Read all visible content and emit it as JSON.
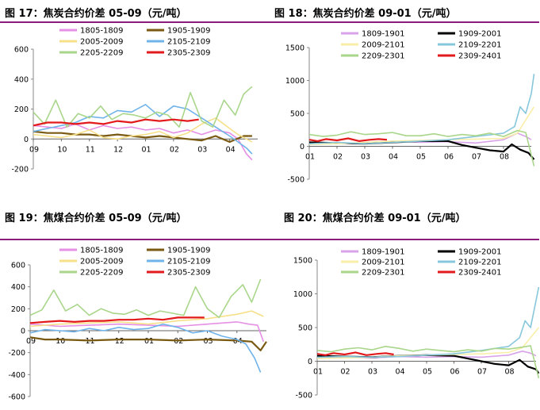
{
  "colors": {
    "rule": "#8a1c7c",
    "s1805": "#e58fe5",
    "s1905": "#7a5a12",
    "s2005": "#f7e08a",
    "s2105": "#6fb3ea",
    "s2205": "#a9d68a",
    "s2305": "#e31a1c",
    "s1809": "#d9a3ea",
    "s1909": "#000000",
    "s2009": "#f9eea8",
    "s2109": "#87c7dc",
    "s2209": "#a9d68a",
    "s2309": "#e31a1c"
  },
  "chart_data": [
    {
      "id": "fig17",
      "type": "line",
      "title": "图 17：焦炭合约价差 05-09（元/吨）",
      "ylim": [
        -200,
        600
      ],
      "yticks": [
        -200,
        0,
        200,
        400,
        600
      ],
      "xticks": [
        "09",
        "10",
        "11",
        "12",
        "01",
        "02",
        "03",
        "04"
      ],
      "xlim": [
        0,
        8
      ],
      "legend": [
        "1805-1809",
        "1905-1909",
        "2005-2009",
        "2105-2109",
        "2205-2209",
        "2305-2309"
      ],
      "series": [
        {
          "name": "1805-1809",
          "color": "s1805",
          "x": [
            0,
            0.5,
            1,
            1.5,
            2,
            2.5,
            3,
            3.5,
            4,
            4.5,
            5,
            5.5,
            6,
            6.5,
            7,
            7.3,
            7.6,
            7.8
          ],
          "values": [
            90,
            80,
            70,
            100,
            60,
            90,
            70,
            80,
            60,
            70,
            40,
            60,
            30,
            60,
            40,
            0,
            -100,
            -140
          ]
        },
        {
          "name": "1905-1909",
          "color": "s1905",
          "x": [
            0,
            0.5,
            1,
            1.5,
            2,
            2.5,
            3,
            3.5,
            4,
            4.5,
            5,
            5.5,
            6,
            6.5,
            7,
            7.5,
            7.8
          ],
          "values": [
            50,
            40,
            40,
            30,
            30,
            20,
            30,
            20,
            10,
            20,
            10,
            0,
            -10,
            20,
            -20,
            20,
            20
          ]
        },
        {
          "name": "2005-2009",
          "color": "s2005",
          "x": [
            0,
            0.5,
            1,
            1.5,
            2,
            2.5,
            3,
            3.5,
            4,
            4.5,
            5,
            5.5,
            6,
            6.5,
            7,
            7.3,
            7.6,
            7.8
          ],
          "values": [
            30,
            20,
            10,
            30,
            60,
            10,
            0,
            20,
            30,
            50,
            10,
            40,
            100,
            140,
            70,
            30,
            0,
            -20
          ]
        },
        {
          "name": "2105-2109",
          "color": "s2105",
          "x": [
            0,
            0.5,
            1,
            1.5,
            2,
            2.5,
            3,
            3.5,
            4,
            4.5,
            5,
            5.5,
            6,
            6.5,
            7,
            7.3,
            7.6,
            7.8
          ],
          "values": [
            50,
            70,
            90,
            110,
            150,
            140,
            190,
            180,
            230,
            150,
            220,
            200,
            140,
            80,
            20,
            -20,
            -60,
            -100
          ]
        },
        {
          "name": "2205-2209",
          "color": "s2205",
          "x": [
            0,
            0.4,
            0.8,
            1.2,
            1.6,
            2,
            2.4,
            2.8,
            3.2,
            3.6,
            4,
            4.4,
            4.8,
            5.2,
            5.6,
            6,
            6.4,
            6.8,
            7.2,
            7.5,
            7.8
          ],
          "values": [
            180,
            100,
            260,
            80,
            170,
            140,
            220,
            130,
            170,
            160,
            140,
            180,
            160,
            80,
            310,
            120,
            80,
            260,
            160,
            300,
            350
          ]
        },
        {
          "name": "2305-2309",
          "color": "s2305",
          "x": [
            0,
            0.5,
            1,
            1.5,
            2,
            2.5,
            3,
            3.5,
            4,
            4.5,
            5,
            5.5,
            5.9
          ],
          "values": [
            90,
            110,
            110,
            100,
            110,
            100,
            120,
            110,
            130,
            120,
            130,
            120,
            130
          ]
        }
      ]
    },
    {
      "id": "fig18",
      "type": "line",
      "title": "图 18：焦炭合约价差 09-01（元/吨）",
      "ylim": [
        -500,
        1500
      ],
      "yticks": [
        -500,
        0,
        500,
        1000,
        1500
      ],
      "xticks": [
        "01",
        "02",
        "03",
        "04",
        "05",
        "06",
        "07",
        "08"
      ],
      "xlim": [
        0,
        8
      ],
      "legend": [
        "1809-1901",
        "1909-2001",
        "2009-2101",
        "2109-2201",
        "2209-2301",
        "2309-2401"
      ],
      "series": [
        {
          "name": "1809-1901",
          "color": "s1809",
          "x": [
            0,
            1,
            2,
            3,
            4,
            5,
            6,
            7,
            7.5,
            7.8,
            8
          ],
          "values": [
            50,
            60,
            40,
            80,
            60,
            70,
            50,
            100,
            200,
            150,
            100
          ]
        },
        {
          "name": "1909-2001",
          "color": "s1909",
          "x": [
            0,
            1,
            2,
            3,
            4,
            5,
            5.5,
            6,
            6.5,
            7,
            7.3,
            7.6,
            7.9,
            8.1
          ],
          "values": [
            60,
            50,
            40,
            60,
            80,
            80,
            20,
            -20,
            -60,
            -80,
            30,
            -50,
            -100,
            -200
          ]
        },
        {
          "name": "2009-2101",
          "color": "s2009",
          "x": [
            0,
            1,
            2,
            3,
            4,
            5,
            6,
            7,
            7.5,
            7.8,
            8.1
          ],
          "values": [
            30,
            40,
            60,
            80,
            90,
            100,
            110,
            120,
            200,
            400,
            600
          ]
        },
        {
          "name": "2109-2201",
          "color": "s2109",
          "x": [
            0,
            1,
            2,
            3,
            4,
            5,
            6,
            7,
            7.4,
            7.6,
            7.8,
            8.0,
            8.1
          ],
          "values": [
            40,
            60,
            40,
            60,
            80,
            100,
            150,
            200,
            300,
            600,
            500,
            800,
            1100
          ]
        },
        {
          "name": "2209-2301",
          "color": "s2209",
          "x": [
            0,
            0.5,
            1,
            1.5,
            2,
            2.5,
            3,
            3.5,
            4,
            4.5,
            5,
            5.5,
            6,
            6.5,
            7,
            7.5,
            7.8,
            8.1
          ],
          "values": [
            180,
            150,
            170,
            220,
            180,
            190,
            210,
            160,
            160,
            190,
            150,
            180,
            160,
            200,
            150,
            240,
            210,
            -300
          ]
        },
        {
          "name": "2309-2401",
          "color": "s2309",
          "x": [
            0,
            0.3,
            0.6,
            1,
            1.4,
            1.8,
            2.2,
            2.5,
            2.8
          ],
          "values": [
            100,
            80,
            110,
            90,
            120,
            80,
            100,
            110,
            100
          ]
        }
      ]
    },
    {
      "id": "fig19",
      "type": "line",
      "title": "图 19：焦煤合约价差 05-09（元/吨）",
      "ylim": [
        -600,
        600
      ],
      "yticks": [
        -600,
        -400,
        -200,
        0,
        200,
        400,
        600
      ],
      "xticks": [
        "09",
        "10",
        "11",
        "12",
        "01",
        "02",
        "03",
        "04"
      ],
      "xlim": [
        0,
        8
      ],
      "legend": [
        "1805-1809",
        "1905-1909",
        "2005-2009",
        "2105-2109",
        "2205-2209",
        "2305-2309"
      ],
      "series": [
        {
          "name": "1805-1809",
          "color": "s1805",
          "x": [
            0,
            1,
            2,
            3,
            4,
            5,
            6,
            7,
            7.4,
            7.7,
            7.9
          ],
          "values": [
            60,
            40,
            50,
            60,
            50,
            40,
            60,
            80,
            60,
            50,
            -100
          ]
        },
        {
          "name": "1905-1909",
          "color": "s1905",
          "x": [
            0,
            0.5,
            1,
            2,
            3,
            4,
            5,
            6,
            7,
            7.5,
            7.8,
            8
          ],
          "values": [
            -60,
            -80,
            -80,
            -90,
            -80,
            -80,
            -90,
            -80,
            -90,
            -100,
            -180,
            -100
          ]
        },
        {
          "name": "2005-2009",
          "color": "s2005",
          "x": [
            0,
            1,
            2,
            3,
            4,
            5,
            6,
            7,
            7.5,
            7.9
          ],
          "values": [
            40,
            60,
            70,
            80,
            60,
            90,
            110,
            150,
            180,
            130
          ]
        },
        {
          "name": "2105-2109",
          "color": "s2105",
          "x": [
            0,
            0.5,
            1,
            1.5,
            2,
            2.5,
            3,
            3.5,
            4,
            4.5,
            5,
            5.5,
            6,
            6.5,
            7,
            7.3,
            7.6,
            7.8
          ],
          "values": [
            -20,
            10,
            0,
            -10,
            20,
            0,
            30,
            10,
            20,
            60,
            30,
            -20,
            0,
            -50,
            -80,
            -120,
            -250,
            -380
          ]
        },
        {
          "name": "2205-2209",
          "color": "s2205",
          "x": [
            0,
            0.4,
            0.8,
            1.2,
            1.6,
            2,
            2.4,
            2.8,
            3.2,
            3.6,
            4,
            4.4,
            4.8,
            5.2,
            5.6,
            6,
            6.4,
            6.8,
            7.2,
            7.5,
            7.8
          ],
          "values": [
            140,
            190,
            370,
            180,
            240,
            140,
            200,
            160,
            150,
            190,
            140,
            180,
            160,
            140,
            400,
            200,
            120,
            310,
            420,
            260,
            470
          ]
        },
        {
          "name": "2305-2309",
          "color": "s2305",
          "x": [
            0,
            0.5,
            1,
            1.5,
            2,
            2.5,
            3,
            3.5,
            4,
            4.5,
            5,
            5.5,
            5.9
          ],
          "values": [
            70,
            80,
            90,
            80,
            90,
            90,
            100,
            100,
            110,
            100,
            120,
            120,
            120
          ]
        }
      ]
    },
    {
      "id": "fig20",
      "type": "line",
      "title": "图 20：焦煤合约价差 09-01（元/吨）",
      "ylim": [
        -500,
        1500
      ],
      "yticks": [
        -500,
        0,
        500,
        1000,
        1500
      ],
      "xticks": [
        "01",
        "02",
        "03",
        "04",
        "05",
        "06",
        "07",
        "08"
      ],
      "xlim": [
        0,
        8
      ],
      "legend": [
        "1809-1901",
        "1909-2001",
        "2009-2101",
        "2109-2201",
        "2209-2301",
        "2309-2401"
      ],
      "series": [
        {
          "name": "1809-1901",
          "color": "s1809",
          "x": [
            0,
            1,
            2,
            3,
            4,
            5,
            6,
            7,
            7.5,
            7.8,
            8
          ],
          "values": [
            50,
            60,
            50,
            70,
            60,
            70,
            60,
            90,
            150,
            120,
            80
          ]
        },
        {
          "name": "1909-2001",
          "color": "s1909",
          "x": [
            0,
            1,
            2,
            3,
            4,
            5,
            5.5,
            6,
            6.5,
            7,
            7.4,
            7.7,
            8.0,
            8.1
          ],
          "values": [
            80,
            70,
            60,
            80,
            90,
            80,
            40,
            0,
            -40,
            -60,
            20,
            -80,
            -120,
            -180
          ]
        },
        {
          "name": "2009-2101",
          "color": "s2009",
          "x": [
            0,
            1,
            2,
            3,
            4,
            5,
            6,
            7,
            7.5,
            7.8,
            8.1
          ],
          "values": [
            40,
            50,
            60,
            80,
            90,
            100,
            110,
            130,
            200,
            350,
            500
          ]
        },
        {
          "name": "2109-2201",
          "color": "s2109",
          "x": [
            0,
            1,
            2,
            3,
            4,
            5,
            6,
            7,
            7.4,
            7.6,
            7.8,
            8.0,
            8.1
          ],
          "values": [
            60,
            70,
            60,
            70,
            90,
            110,
            160,
            220,
            350,
            600,
            500,
            900,
            1100
          ]
        },
        {
          "name": "2209-2301",
          "color": "s2209",
          "x": [
            0,
            0.5,
            1,
            1.5,
            2,
            2.5,
            3,
            3.5,
            4,
            4.5,
            5,
            5.5,
            6,
            6.5,
            7,
            7.5,
            7.8,
            8.1
          ],
          "values": [
            160,
            140,
            180,
            200,
            170,
            220,
            190,
            150,
            180,
            160,
            140,
            170,
            150,
            190,
            180,
            210,
            230,
            -250
          ]
        },
        {
          "name": "2309-2401",
          "color": "s2309",
          "x": [
            0,
            0.3,
            0.6,
            1,
            1.4,
            1.8,
            2.2,
            2.5,
            2.8
          ],
          "values": [
            110,
            90,
            120,
            100,
            130,
            90,
            110,
            120,
            100
          ]
        }
      ]
    }
  ]
}
